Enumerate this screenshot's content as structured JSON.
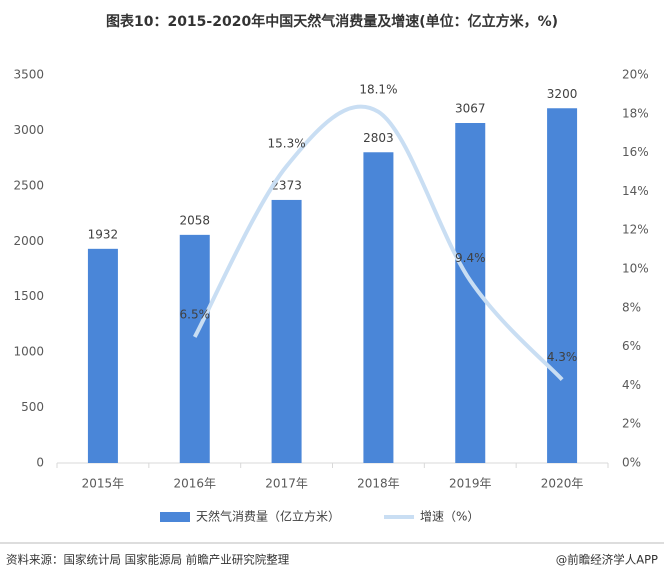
{
  "chart_data": {
    "type": "bar",
    "title": "图表10：2015-2020年中国天然气消费量及增速(单位：亿立方米，%)",
    "categories": [
      "2015年",
      "2016年",
      "2017年",
      "2018年",
      "2019年",
      "2020年"
    ],
    "series": [
      {
        "name": "天然气消费量（亿立方米）",
        "type": "bar",
        "color": "#4a86d8",
        "values": [
          1932,
          2058,
          2373,
          2803,
          3067,
          3200
        ]
      },
      {
        "name": "增速（%）",
        "type": "line",
        "axis": "y2",
        "color": "#c9def3",
        "values": [
          null,
          6.5,
          15.3,
          18.1,
          9.4,
          4.3
        ],
        "value_labels": [
          null,
          "6.5%",
          "15.3%",
          "18.1%",
          "9.4%",
          "4.3%"
        ]
      }
    ],
    "ylim": [
      0,
      3500
    ],
    "yticks": [
      0,
      500,
      1000,
      1500,
      2000,
      2500,
      3000,
      3500
    ],
    "y2lim": [
      0,
      20
    ],
    "y2ticks": [
      {
        "value": 0,
        "label": "0%"
      },
      {
        "value": 2,
        "label": "2%"
      },
      {
        "value": 4,
        "label": "4%"
      },
      {
        "value": 6,
        "label": "6%"
      },
      {
        "value": 8,
        "label": "8%"
      },
      {
        "value": 10,
        "label": "10%"
      },
      {
        "value": 12,
        "label": "12%"
      },
      {
        "value": 14,
        "label": "14%"
      },
      {
        "value": 16,
        "label": "16%"
      },
      {
        "value": 18,
        "label": "18%"
      },
      {
        "value": 20,
        "label": "20%"
      }
    ],
    "source": "资料来源：国家统计局 国家能源局 前瞻产业研究院整理",
    "credit": "@前瞻经济学人APP"
  }
}
